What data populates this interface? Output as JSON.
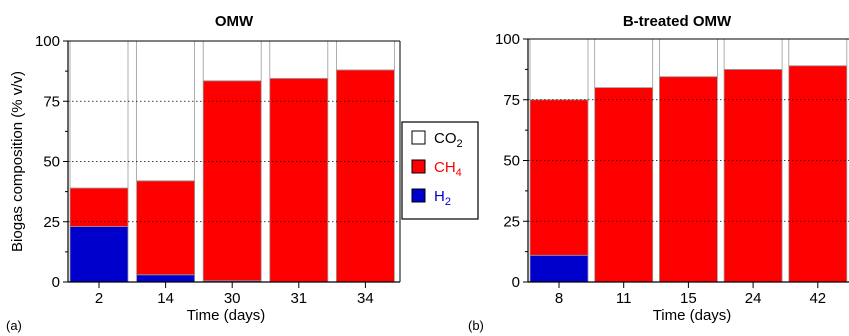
{
  "chart_data": [
    {
      "type": "bar",
      "stacked": true,
      "title": "OMW",
      "panel_label": "(a)",
      "xlabel": "Time (days)",
      "ylabel": "Biogas composition (% v/v)",
      "ylim": [
        0,
        100
      ],
      "yticks": [
        "0",
        "25",
        "50",
        "75",
        "100"
      ],
      "categories": [
        "2",
        "14",
        "30",
        "31",
        "34"
      ],
      "series": [
        {
          "name": "H2",
          "color": "#0000cc",
          "values": [
            23,
            3,
            0.5,
            0,
            0
          ]
        },
        {
          "name": "CH4",
          "color": "#ff0000",
          "values": [
            16,
            39,
            83,
            84.5,
            88
          ]
        },
        {
          "name": "CO2",
          "color": "#ffffff",
          "values": [
            61,
            58,
            16.5,
            15.5,
            12
          ]
        }
      ]
    },
    {
      "type": "bar",
      "stacked": true,
      "title": "B-treated OMW",
      "panel_label": "(b)",
      "xlabel": "Time (days)",
      "ylabel": "",
      "ylim": [
        0,
        100
      ],
      "yticks": [
        "0",
        "25",
        "50",
        "75",
        "100"
      ],
      "categories": [
        "8",
        "11",
        "15",
        "24",
        "42"
      ],
      "series": [
        {
          "name": "H2",
          "color": "#0000cc",
          "values": [
            11,
            0,
            0,
            0,
            0
          ]
        },
        {
          "name": "CH4",
          "color": "#ff0000",
          "values": [
            64,
            80,
            84.5,
            87.5,
            89
          ]
        },
        {
          "name": "CO2",
          "color": "#ffffff",
          "values": [
            25,
            20,
            15.5,
            12.5,
            11
          ]
        }
      ]
    }
  ],
  "legend": {
    "placement": "center",
    "items": [
      {
        "base": "CO",
        "sub": "2",
        "color": "#ffffff",
        "text_color": "#000000"
      },
      {
        "base": "CH",
        "sub": "4",
        "color": "#ff0000",
        "text_color": "#ff0000"
      },
      {
        "base": "H",
        "sub": "2",
        "color": "#0000cc",
        "text_color": "#0000cc"
      }
    ]
  }
}
